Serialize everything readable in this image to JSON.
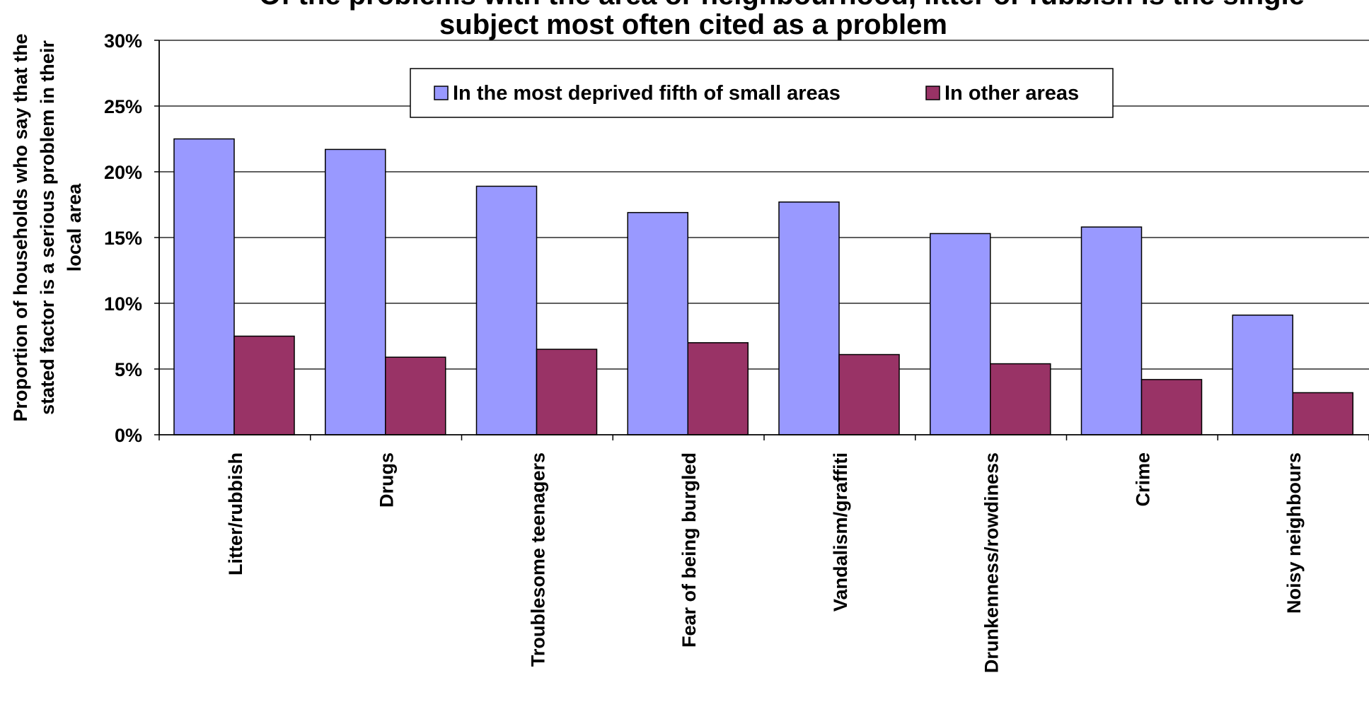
{
  "chart_data": {
    "type": "bar",
    "title_line1": "Of the problems with the area or neighbourhood, litter or rubbish is the single",
    "title_line2": "subject most often cited as a problem",
    "xlabel": "",
    "ylabel_lines": [
      "Proportion of households who say that the",
      "stated factor is a serious problem in their",
      "local area"
    ],
    "ylim": [
      0,
      30
    ],
    "yticks": [
      "0%",
      "5%",
      "10%",
      "15%",
      "20%",
      "25%",
      "30%"
    ],
    "grid": true,
    "legend_position": "top",
    "categories": [
      "Litter/rubbish",
      "Drugs",
      "Troublesome teenagers",
      "Fear of being burgled",
      "Vandalism/graffiti",
      "Drunkenness/rowdiness",
      "Crime",
      "Noisy neighbours"
    ],
    "series": [
      {
        "name": "In the most deprived fifth of small areas",
        "color": "#9999ff",
        "values": [
          22.5,
          21.7,
          18.9,
          16.9,
          17.7,
          15.3,
          15.8,
          9.1
        ]
      },
      {
        "name": "In other areas",
        "color": "#993366",
        "values": [
          7.5,
          5.9,
          6.5,
          7.0,
          6.1,
          5.4,
          4.2,
          3.2
        ]
      }
    ]
  }
}
